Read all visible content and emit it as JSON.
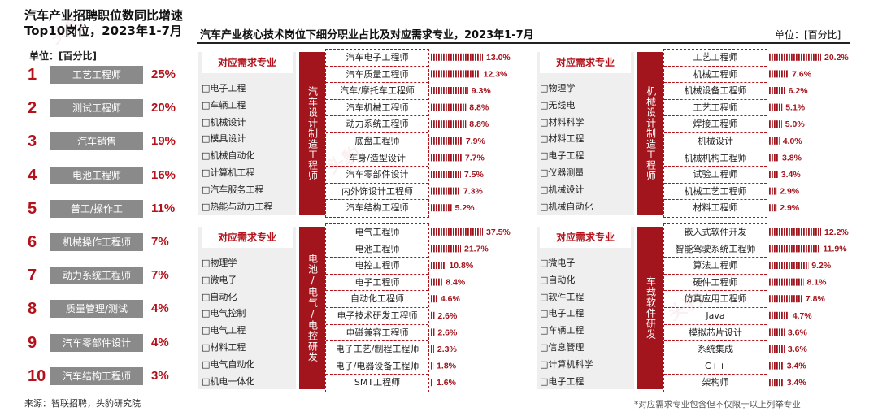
{
  "left": {
    "title": "汽车产业招聘职位数同比增速Top10岗位，2023年1-7月",
    "unit": "单位：[百分比]",
    "source": "来源：智联招聘，头豹研究院",
    "ranks": [
      {
        "rank": "1",
        "job": "工艺工程师",
        "pct": "25%"
      },
      {
        "rank": "2",
        "job": "测试工程师",
        "pct": "20%"
      },
      {
        "rank": "3",
        "job": "汽车销售",
        "pct": "19%"
      },
      {
        "rank": "4",
        "job": "电池工程师",
        "pct": "16%"
      },
      {
        "rank": "5",
        "job": "普工/操作工",
        "pct": "11%"
      },
      {
        "rank": "6",
        "job": "机械操作工程师",
        "pct": "7%"
      },
      {
        "rank": "7",
        "job": "动力系统工程师",
        "pct": "7%"
      },
      {
        "rank": "8",
        "job": "质量管理/测试",
        "pct": "4%"
      },
      {
        "rank": "9",
        "job": "汽车零部件设计",
        "pct": "4%"
      },
      {
        "rank": "10",
        "job": "汽车结构工程师",
        "pct": "3%"
      }
    ]
  },
  "right": {
    "title": "汽车产业核心技术岗位下细分职业占比及对应需求专业，2023年1-7月",
    "unit": "单位：[百分比]",
    "footnote": "*对应需求专业包含但不仅限于以上列举专业"
  },
  "panels": [
    {
      "majors_header": "对应需求专业",
      "category": "汽车设计制造工程师",
      "majors": [
        "□电子工程",
        "□车辆工程",
        "□机械设计",
        "□模具设计",
        "□机械自动化",
        "□计算机工程",
        "□汽车服务工程",
        "□热能与动力工程"
      ]
    },
    {
      "majors_header": "对应需求专业",
      "category": "机械设计制造工程师",
      "majors": [
        "□物理学",
        "□无线电",
        "□材料科学",
        "□材料工程",
        "□电子工程",
        "□仪器测量",
        "□机械设计",
        "□机械自动化"
      ]
    },
    {
      "majors_header": "对应需求专业",
      "category": "电池/电气/电控研发",
      "majors": [
        "□物理学",
        "□微电子",
        "□自动化",
        "□电气控制",
        "□电气工程",
        "□材料工程",
        "□电气自动化",
        "□机电一体化"
      ]
    },
    {
      "majors_header": "对应需求专业",
      "category": "车载软件研发",
      "majors": [
        "□微电子",
        "□自动化",
        "□软件工程",
        "□电子工程",
        "□车辆工程",
        "□信息管理",
        "□计算机科学",
        "□电子工程"
      ]
    }
  ],
  "chart_data": [
    {
      "type": "bar",
      "title": "汽车设计制造工程师",
      "categories": [
        "汽车电子工程师",
        "汽车质量工程师",
        "汽车/摩托车工程师",
        "汽车机械工程师",
        "动力系统工程师",
        "底盘工程师",
        "车身/造型设计",
        "汽车零部件设计",
        "内外饰设计工程师",
        "汽车结构工程师"
      ],
      "values": [
        13.0,
        12.3,
        9.3,
        8.8,
        8.8,
        7.9,
        7.7,
        7.5,
        7.3,
        5.2
      ],
      "labels": [
        "13.0%",
        "12.3%",
        "9.3%",
        "8.8%",
        "8.8%",
        "7.9%",
        "7.7%",
        "7.5%",
        "7.3%",
        "5.2%"
      ]
    },
    {
      "type": "bar",
      "title": "机械设计制造工程师",
      "categories": [
        "工艺工程师",
        "机械工程师",
        "机械设备工程师",
        "工艺工程师",
        "焊接工程师",
        "机械设计",
        "机械机构工程师",
        "试验工程师",
        "机械工艺工程师",
        "材料工程师"
      ],
      "values": [
        20.2,
        7.6,
        6.2,
        5.1,
        5.0,
        4.0,
        3.8,
        3.4,
        2.9,
        2.9
      ],
      "labels": [
        "20.2%",
        "7.6%",
        "6.2%",
        "5.1%",
        "5.0%",
        "4.0%",
        "3.8%",
        "3.4%",
        "2.9%",
        "2.9%"
      ]
    },
    {
      "type": "bar",
      "title": "电池/电气/电控研发",
      "categories": [
        "电气工程师",
        "电池工程师",
        "电控工程师",
        "电子工程师",
        "自动化工程师",
        "电子技术研发工程师",
        "电磁兼容工程师",
        "电子工艺/制程工程师",
        "电子/电器设备工程师",
        "SMT工程师"
      ],
      "values": [
        37.5,
        21.7,
        10.8,
        8.4,
        4.6,
        2.6,
        2.6,
        2.3,
        1.8,
        1.6
      ],
      "labels": [
        "37.5%",
        "21.7%",
        "10.8%",
        "8.4%",
        "4.6%",
        "2.6%",
        "2.6%",
        "2.3%",
        "1.8%",
        "1.6%"
      ]
    },
    {
      "type": "bar",
      "title": "车载软件研发",
      "categories": [
        "嵌入式软件开发",
        "智能驾驶系统工程师",
        "算法工程师",
        "硬件工程师",
        "仿真应用工程师",
        "Java",
        "模拟芯片设计",
        "系统集成",
        "C++",
        "架构师"
      ],
      "values": [
        12.2,
        11.9,
        9.2,
        8.1,
        7.8,
        4.7,
        3.6,
        3.6,
        3.4,
        3.4
      ],
      "labels": [
        "12.2%",
        "11.9%",
        "9.2%",
        "8.1%",
        "7.8%",
        "4.7%",
        "3.6%",
        "3.6%",
        "3.4%",
        "3.4%"
      ]
    }
  ]
}
